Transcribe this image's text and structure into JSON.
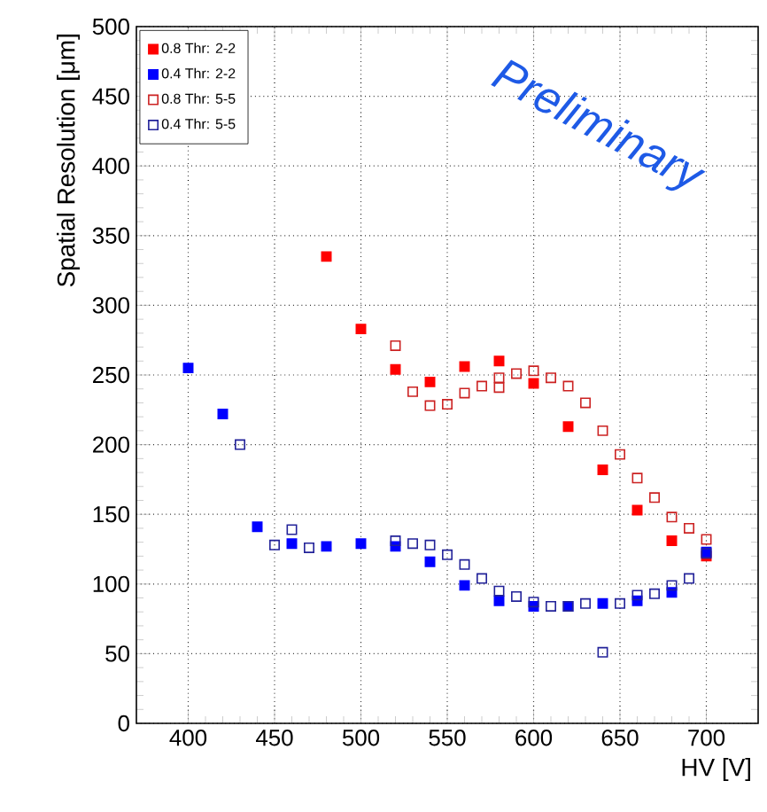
{
  "chart_data": {
    "type": "scatter",
    "xlabel": "HV [V]",
    "ylabel": "Spatial Resolution [μm]",
    "xlim": [
      370,
      730
    ],
    "ylim": [
      0,
      500
    ],
    "xticks": [
      400,
      450,
      500,
      550,
      600,
      650,
      700
    ],
    "yticks": [
      0,
      50,
      100,
      150,
      200,
      250,
      300,
      350,
      400,
      450,
      500
    ],
    "grid": true,
    "legend": "top left",
    "annotations": [
      "Preliminary"
    ],
    "series": [
      {
        "name": "0.8 Thr: 2-2",
        "color": "#ff0000",
        "marker": "square",
        "x": [
          480,
          500,
          520,
          540,
          560,
          580,
          600,
          620,
          640,
          660,
          680,
          700
        ],
        "values": [
          335,
          283,
          254,
          245,
          256,
          260,
          244,
          213,
          182,
          153,
          131,
          120
        ]
      },
      {
        "name": "0.4 Thr: 2-2",
        "color": "#0000ff",
        "marker": "square",
        "x": [
          400,
          420,
          440,
          460,
          480,
          500,
          520,
          540,
          560,
          580,
          600,
          620,
          640,
          660,
          680,
          700
        ],
        "values": [
          255,
          222,
          141,
          129,
          127,
          129,
          127,
          116,
          99,
          88,
          84,
          84,
          86,
          88,
          94,
          123
        ]
      },
      {
        "name": "0.8 Thr: 5-5",
        "color": "#cc2222",
        "marker": "square-open",
        "x": [
          520,
          530,
          540,
          550,
          560,
          570,
          580,
          580,
          590,
          600,
          610,
          620,
          630,
          640,
          650,
          660,
          670,
          680,
          690,
          700
        ],
        "values": [
          271,
          238,
          228,
          229,
          237,
          242,
          248,
          241,
          251,
          253,
          248,
          242,
          230,
          210,
          193,
          176,
          162,
          148,
          140,
          132
        ]
      },
      {
        "name": "0.4 Thr: 5-5",
        "color": "#222299",
        "marker": "square-open",
        "x": [
          430,
          450,
          460,
          470,
          520,
          530,
          540,
          550,
          560,
          570,
          580,
          590,
          600,
          610,
          620,
          630,
          640,
          650,
          660,
          670,
          680,
          690,
          700
        ],
        "values": [
          200,
          128,
          139,
          126,
          131,
          129,
          128,
          121,
          114,
          104,
          95,
          91,
          87,
          84,
          84,
          86,
          51,
          86,
          92,
          93,
          99,
          104,
          122
        ]
      }
    ]
  }
}
